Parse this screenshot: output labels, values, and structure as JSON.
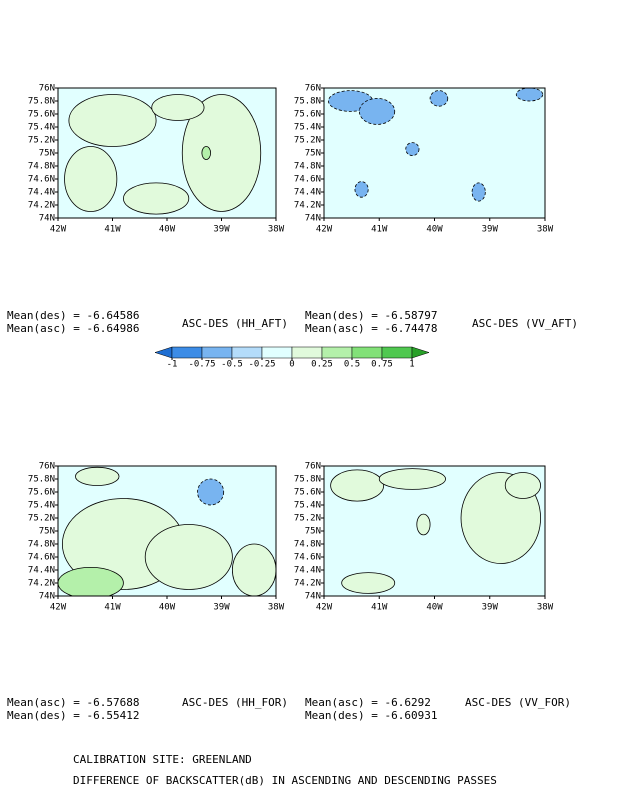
{
  "chart_data": [
    {
      "type": "contour",
      "title": "ASC-DES (HH_AFT)",
      "annotations": [
        "Mean(des) = -6.64586",
        "Mean(asc) = -6.64986"
      ],
      "xlim": [
        -42,
        -38
      ],
      "ylim": [
        74,
        76
      ],
      "xticks": [
        {
          "value": -42,
          "label": "42W"
        },
        {
          "value": -41,
          "label": "41W"
        },
        {
          "value": -40,
          "label": "40W"
        },
        {
          "value": -39,
          "label": "39W"
        },
        {
          "value": -38,
          "label": "38W"
        }
      ],
      "yticks": [
        {
          "value": 74,
          "label": "74N"
        },
        {
          "value": 74.2,
          "label": "74.2N"
        },
        {
          "value": 74.4,
          "label": "74.4N"
        },
        {
          "value": 74.6,
          "label": "74.6N"
        },
        {
          "value": 74.8,
          "label": "74.8N"
        },
        {
          "value": 75,
          "label": "75N"
        },
        {
          "value": 75.2,
          "label": "75.2N"
        },
        {
          "value": 75.4,
          "label": "75.4N"
        },
        {
          "value": 75.6,
          "label": "75.6N"
        },
        {
          "value": 75.8,
          "label": "75.8N"
        },
        {
          "value": 76,
          "label": "76N"
        }
      ]
    },
    {
      "type": "contour",
      "title": "ASC-DES (VV_AFT)",
      "annotations": [
        "Mean(des) = -6.58797",
        "Mean(asc) = -6.74478"
      ],
      "xlim": [
        -42,
        -38
      ],
      "ylim": [
        74,
        76
      ],
      "xticks": [
        {
          "value": -42,
          "label": "42W"
        },
        {
          "value": -41,
          "label": "41W"
        },
        {
          "value": -40,
          "label": "40W"
        },
        {
          "value": -39,
          "label": "39W"
        },
        {
          "value": -38,
          "label": "38W"
        }
      ],
      "yticks": [
        {
          "value": 74,
          "label": "74N"
        },
        {
          "value": 74.2,
          "label": "74.2N"
        },
        {
          "value": 74.4,
          "label": "74.4N"
        },
        {
          "value": 74.6,
          "label": "74.6N"
        },
        {
          "value": 74.8,
          "label": "74.8N"
        },
        {
          "value": 75,
          "label": "75N"
        },
        {
          "value": 75.2,
          "label": "75.2N"
        },
        {
          "value": 75.4,
          "label": "75.4N"
        },
        {
          "value": 75.6,
          "label": "75.6N"
        },
        {
          "value": 75.8,
          "label": "75.8N"
        },
        {
          "value": 76,
          "label": "76N"
        }
      ]
    },
    {
      "type": "contour",
      "title": "ASC-DES (HH_FOR)",
      "annotations": [
        "Mean(asc) = -6.57688",
        "Mean(des) = -6.55412"
      ],
      "xlim": [
        -42,
        -38
      ],
      "ylim": [
        74,
        76
      ],
      "xticks": [
        {
          "value": -42,
          "label": "42W"
        },
        {
          "value": -41,
          "label": "41W"
        },
        {
          "value": -40,
          "label": "40W"
        },
        {
          "value": -39,
          "label": "39W"
        },
        {
          "value": -38,
          "label": "38W"
        }
      ],
      "yticks": [
        {
          "value": 74,
          "label": "74N"
        },
        {
          "value": 74.2,
          "label": "74.2N"
        },
        {
          "value": 74.4,
          "label": "74.4N"
        },
        {
          "value": 74.6,
          "label": "74.6N"
        },
        {
          "value": 74.8,
          "label": "74.8N"
        },
        {
          "value": 75,
          "label": "75N"
        },
        {
          "value": 75.2,
          "label": "75.2N"
        },
        {
          "value": 75.4,
          "label": "75.4N"
        },
        {
          "value": 75.6,
          "label": "75.6N"
        },
        {
          "value": 75.8,
          "label": "75.8N"
        },
        {
          "value": 76,
          "label": "76N"
        }
      ]
    },
    {
      "type": "contour",
      "title": "ASC-DES (VV_FOR)",
      "annotations": [
        "Mean(asc) = -6.6292",
        "Mean(des) = -6.60931"
      ],
      "xlim": [
        -42,
        -38
      ],
      "ylim": [
        74,
        76
      ],
      "xticks": [
        {
          "value": -42,
          "label": "42W"
        },
        {
          "value": -41,
          "label": "41W"
        },
        {
          "value": -40,
          "label": "40W"
        },
        {
          "value": -39,
          "label": "39W"
        },
        {
          "value": -38,
          "label": "38W"
        }
      ],
      "yticks": [
        {
          "value": 74,
          "label": "74N"
        },
        {
          "value": 74.2,
          "label": "74.2N"
        },
        {
          "value": 74.4,
          "label": "74.4N"
        },
        {
          "value": 74.6,
          "label": "74.6N"
        },
        {
          "value": 74.8,
          "label": "74.8N"
        },
        {
          "value": 75,
          "label": "75N"
        },
        {
          "value": 75.2,
          "label": "75.2N"
        },
        {
          "value": 75.4,
          "label": "75.4N"
        },
        {
          "value": 75.6,
          "label": "75.6N"
        },
        {
          "value": 75.8,
          "label": "75.8N"
        },
        {
          "value": 76,
          "label": "76N"
        }
      ]
    }
  ],
  "colorbar": {
    "levels": [
      -1,
      -0.75,
      -0.5,
      -0.25,
      0,
      0.25,
      0.5,
      0.75,
      1
    ],
    "colors": [
      "#1e6ed2",
      "#3c8ce6",
      "#78b4f0",
      "#b4dcfa",
      "#e1ffff",
      "#e1fadc",
      "#b4f0aa",
      "#82e178",
      "#50c850",
      "#28a028"
    ]
  },
  "footer": [
    "CALIBRATION SITE: GREENLAND",
    "DIFFERENCE OF BACKSCATTER(dB) IN ASCENDING AND DESCENDING PASSES"
  ]
}
